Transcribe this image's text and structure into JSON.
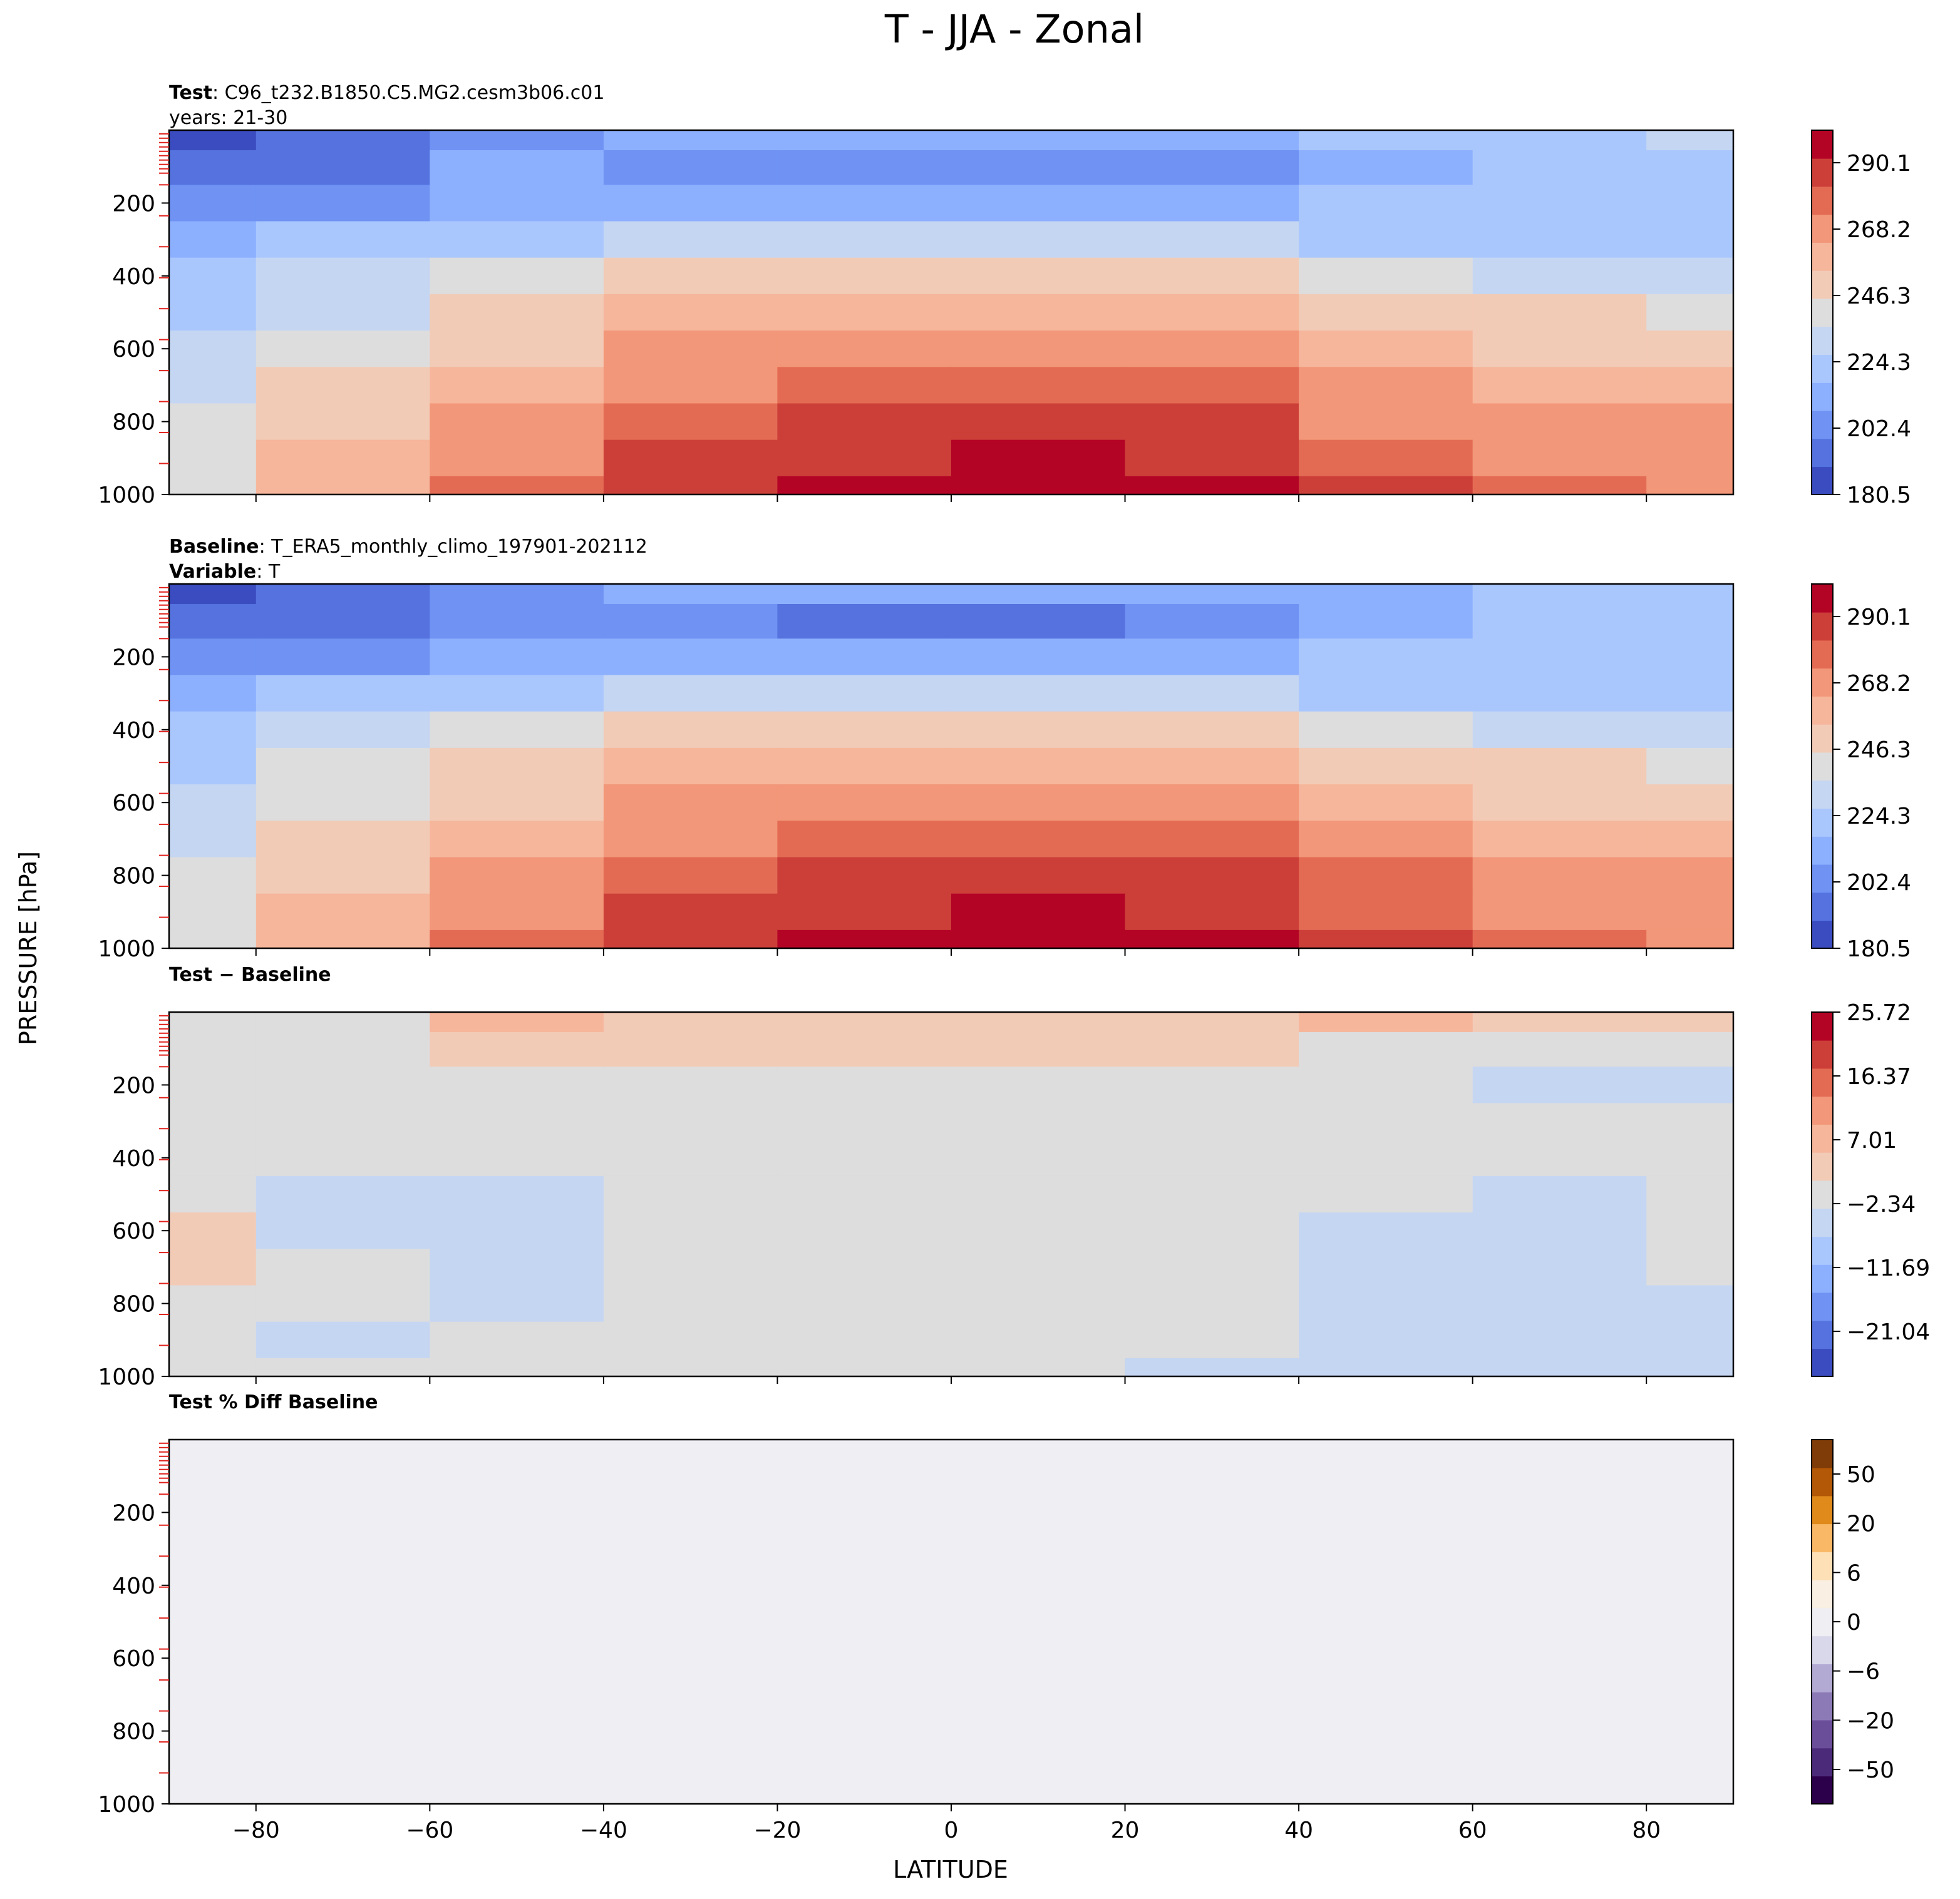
{
  "figure_title": "T - JJA - Zonal",
  "ylabel": "PRESSURE [hPa]",
  "xlabel": "LATITUDE",
  "x_ticks": [
    -80,
    -60,
    -40,
    -20,
    0,
    20,
    40,
    60,
    80
  ],
  "y_ticks": [
    200,
    400,
    600,
    800,
    1000
  ],
  "xlim": [
    -90,
    90
  ],
  "ylim": [
    1000,
    0
  ],
  "panels": [
    {
      "id": "test",
      "line1_bold": "Test",
      "line1_text": ": C96_t232.B1850.C5.MG2.cesm3b06.c01",
      "line2_bold": "",
      "line2_text": "years: 21-30",
      "colormap": "coolwarm",
      "colorbar_ticks": [
        "290.1",
        "268.2",
        "246.3",
        "224.3",
        "202.4",
        "180.5"
      ]
    },
    {
      "id": "baseline",
      "line1_bold": "Baseline",
      "line1_text": ": T_ERA5_monthly_climo_197901-202112",
      "line2_bold": "Variable",
      "line2_text": ": T",
      "colormap": "coolwarm",
      "colorbar_ticks": [
        "290.1",
        "268.2",
        "246.3",
        "224.3",
        "202.4",
        "180.5"
      ]
    },
    {
      "id": "diff",
      "line1_bold": "Test − Baseline",
      "line1_text": "",
      "line2_bold": "",
      "line2_text": "",
      "colormap": "coolwarm",
      "colorbar_ticks": [
        "25.72",
        "16.37",
        "7.01",
        "−2.34",
        "−11.69",
        "−21.04"
      ]
    },
    {
      "id": "pctdiff",
      "line1_bold": "Test % Diff Baseline",
      "line1_text": "",
      "line2_bold": "",
      "line2_text": "",
      "colormap": "PuOr_r",
      "colorbar_ticks": [
        "50",
        "20",
        "6",
        "0",
        "−6",
        "−20",
        "−50"
      ]
    }
  ],
  "chart_data": {
    "type": "heatmap",
    "title": "T - JJA - Zonal",
    "xlabel": "LATITUDE",
    "ylabel": "PRESSURE [hPa]",
    "xlim": [
      -90,
      90
    ],
    "ylim": [
      1000,
      0
    ],
    "latitudes": [
      -90,
      -70,
      -50,
      -30,
      -10,
      10,
      30,
      50,
      70,
      90
    ],
    "pressures": [
      10,
      100,
      200,
      300,
      400,
      500,
      600,
      700,
      800,
      900,
      1000
    ],
    "series": [
      {
        "name": "Test",
        "clim": [
          180.5,
          300
        ],
        "values": [
          [
            185,
            195,
            208,
            212,
            212,
            212,
            212,
            218,
            225,
            228
          ],
          [
            190,
            198,
            210,
            208,
            200,
            200,
            208,
            215,
            220,
            222
          ],
          [
            200,
            205,
            212,
            216,
            215,
            215,
            216,
            218,
            220,
            220
          ],
          [
            212,
            218,
            225,
            228,
            230,
            230,
            228,
            226,
            224,
            222
          ],
          [
            220,
            228,
            238,
            245,
            248,
            248,
            245,
            240,
            235,
            232
          ],
          [
            225,
            235,
            245,
            255,
            260,
            260,
            256,
            250,
            245,
            242
          ],
          [
            232,
            240,
            253,
            265,
            270,
            270,
            266,
            258,
            252,
            250
          ],
          [
            235,
            248,
            260,
            272,
            278,
            279,
            275,
            266,
            260,
            258
          ],
          [
            238,
            252,
            265,
            278,
            285,
            287,
            282,
            272,
            266,
            264
          ],
          [
            240,
            255,
            270,
            283,
            290,
            292,
            288,
            277,
            270,
            268
          ],
          [
            242,
            258,
            275,
            288,
            295,
            297,
            292,
            282,
            274,
            270
          ]
        ]
      },
      {
        "name": "Baseline",
        "clim": [
          180.5,
          300
        ],
        "values": [
          [
            186,
            195,
            206,
            212,
            212,
            212,
            212,
            216,
            222,
            226
          ],
          [
            190,
            198,
            208,
            206,
            198,
            198,
            206,
            214,
            220,
            222
          ],
          [
            200,
            205,
            212,
            216,
            215,
            215,
            216,
            218,
            220,
            220
          ],
          [
            212,
            218,
            225,
            228,
            230,
            230,
            228,
            226,
            224,
            222
          ],
          [
            220,
            228,
            238,
            245,
            248,
            248,
            245,
            240,
            235,
            232
          ],
          [
            226,
            236,
            245,
            255,
            260,
            260,
            256,
            250,
            245,
            242
          ],
          [
            230,
            242,
            254,
            265,
            270,
            270,
            266,
            258,
            252,
            250
          ],
          [
            234,
            248,
            261,
            272,
            278,
            279,
            275,
            267,
            261,
            258
          ],
          [
            236,
            252,
            266,
            279,
            286,
            288,
            283,
            273,
            267,
            264
          ],
          [
            238,
            255,
            270,
            283,
            290,
            292,
            288,
            278,
            271,
            268
          ],
          [
            240,
            258,
            275,
            288,
            295,
            297,
            292,
            283,
            275,
            270
          ]
        ]
      },
      {
        "name": "Test − Baseline",
        "clim": [
          -25.72,
          25.72
        ],
        "values": [
          [
            -1,
            1,
            6,
            4,
            2,
            2,
            4,
            6,
            4,
            3
          ],
          [
            -1,
            1,
            3,
            2,
            2,
            3,
            2,
            1,
            0,
            0
          ],
          [
            0,
            0,
            0,
            0,
            0,
            0,
            0,
            0,
            -3,
            -3
          ],
          [
            0,
            0,
            0,
            0,
            0,
            0,
            0,
            0,
            -1,
            -1
          ],
          [
            0,
            0,
            0,
            0,
            0,
            0,
            0,
            0,
            0,
            0
          ],
          [
            0,
            -3,
            -3,
            0,
            0,
            0,
            0,
            0,
            -3,
            0
          ],
          [
            2,
            -3,
            -4,
            0,
            0,
            0,
            0,
            -4,
            -4,
            0
          ],
          [
            2,
            0,
            -4,
            0,
            0,
            0,
            0,
            -4,
            -3,
            0
          ],
          [
            1,
            0,
            -3,
            0,
            0,
            0,
            0,
            -3,
            -3,
            -3
          ],
          [
            0,
            -3,
            0,
            0,
            0,
            0,
            0,
            -3,
            -3,
            -3
          ],
          [
            0,
            0,
            0,
            0,
            0,
            0,
            -3,
            -3,
            -3,
            -3
          ]
        ]
      },
      {
        "name": "Test % Diff Baseline",
        "clim": [
          -70,
          70
        ],
        "values": [
          [
            -1,
            2,
            3,
            3,
            2,
            2,
            2,
            2,
            2,
            2
          ],
          [
            -1,
            1,
            2,
            2,
            2,
            2,
            2,
            2,
            2,
            2
          ],
          [
            1,
            1,
            2,
            2,
            2,
            2,
            -1,
            -1,
            -1,
            -2
          ],
          [
            0,
            -1,
            1,
            2,
            2,
            2,
            1,
            -1,
            -1,
            -1
          ],
          [
            0,
            -1,
            -1,
            2,
            2,
            2,
            1,
            -1,
            -1,
            -1
          ],
          [
            -1,
            -1,
            -1,
            1,
            2,
            2,
            1,
            -1,
            -1,
            -1
          ],
          [
            1,
            -1,
            -1,
            1,
            2,
            2,
            1,
            -1,
            -1,
            -1
          ],
          [
            1,
            1,
            -1,
            -1,
            2,
            2,
            1,
            -1,
            -1,
            -1
          ],
          [
            1,
            1,
            -1,
            -1,
            1,
            2,
            -1,
            -1,
            -1,
            -1
          ],
          [
            1,
            -1,
            -1,
            -1,
            1,
            1,
            -1,
            -1,
            -1,
            -1
          ],
          [
            -1,
            -1,
            -1,
            -1,
            1,
            1,
            -1,
            -1,
            -1,
            -1
          ]
        ]
      }
    ]
  }
}
